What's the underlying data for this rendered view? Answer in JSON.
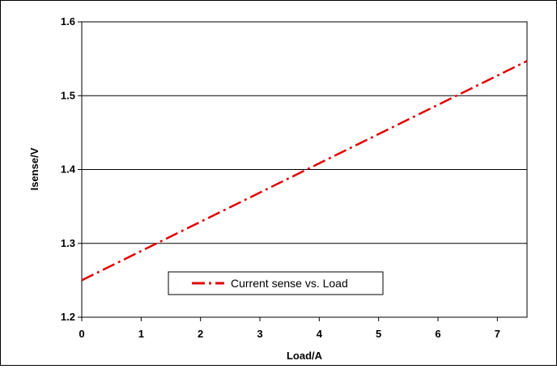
{
  "chart_data": {
    "type": "line",
    "title": "",
    "xlabel": "Load/A",
    "ylabel": "Isense/V",
    "xlim": [
      0,
      7.5
    ],
    "ylim": [
      1.2,
      1.6
    ],
    "x_ticks": [
      "0",
      "1",
      "2",
      "3",
      "4",
      "5",
      "6",
      "7"
    ],
    "y_ticks": [
      "1.2",
      "1.3",
      "1.4",
      "1.5",
      "1.6"
    ],
    "grid": "horizontal",
    "legend_position": "bottom-center",
    "series": [
      {
        "name": "Current sense vs. Load",
        "color": "#e00000",
        "line_style": "dash-dot",
        "x": [
          0,
          7.5
        ],
        "y": [
          1.25,
          1.547
        ]
      }
    ]
  }
}
